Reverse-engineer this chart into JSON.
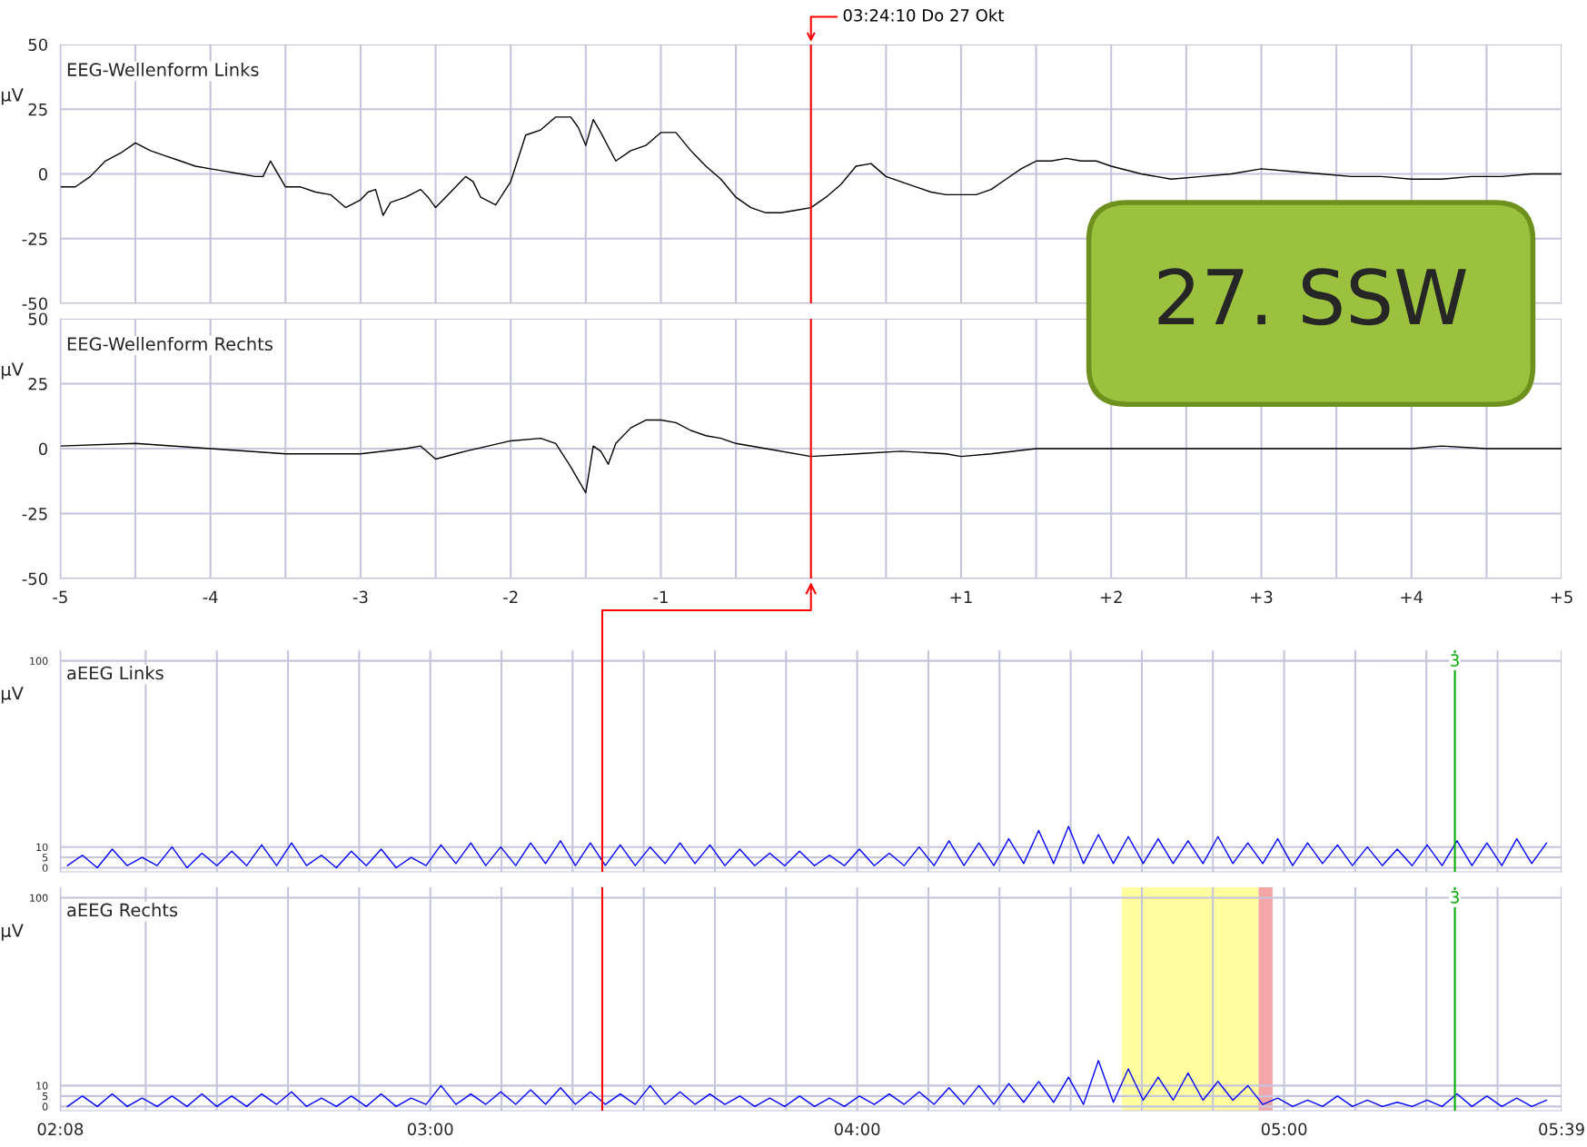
{
  "chart_data": [
    {
      "type": "line",
      "title": "EEG-Wellenform Links",
      "ylabel": "µV",
      "tick_labels": "y",
      "grid": true,
      "xlim": [
        -5,
        5
      ],
      "xticks": [
        -5,
        -4.5,
        -4,
        -3.5,
        -3,
        -2.5,
        -2,
        -1.5,
        -1,
        -0.5,
        0,
        0.5,
        1,
        1.5,
        2,
        2.5,
        3,
        3.5,
        4,
        4.5,
        5
      ],
      "ylim": [
        -50,
        50
      ],
      "yticks": [
        -50,
        -25,
        0,
        25,
        50
      ],
      "x": [
        -5,
        -4.9,
        -4.8,
        -4.7,
        -4.6,
        -4.5,
        -4.4,
        -4.3,
        -4.2,
        -4.1,
        -4,
        -3.9,
        -3.8,
        -3.7,
        -3.65,
        -3.6,
        -3.5,
        -3.4,
        -3.3,
        -3.2,
        -3.1,
        -3,
        -2.95,
        -2.9,
        -2.85,
        -2.8,
        -2.7,
        -2.6,
        -2.55,
        -2.5,
        -2.4,
        -2.3,
        -2.25,
        -2.2,
        -2.1,
        -2,
        -1.9,
        -1.8,
        -1.7,
        -1.6,
        -1.55,
        -1.5,
        -1.45,
        -1.4,
        -1.3,
        -1.2,
        -1.1,
        -1,
        -0.9,
        -0.8,
        -0.7,
        -0.6,
        -0.5,
        -0.4,
        -0.3,
        -0.2,
        -0.1,
        0,
        0.1,
        0.2,
        0.3,
        0.4,
        0.5,
        0.6,
        0.7,
        0.8,
        0.9,
        1,
        1.1,
        1.2,
        1.3,
        1.4,
        1.5,
        1.6,
        1.7,
        1.8,
        1.9,
        2,
        2.2,
        2.4,
        2.6,
        2.8,
        3,
        3.2,
        3.4,
        3.6,
        3.8,
        4,
        4.2,
        4.4,
        4.6,
        4.8,
        5
      ],
      "series": [
        {
          "color": "#000000",
          "values": [
            -5,
            -5,
            -1,
            5,
            8,
            12,
            9,
            7,
            5,
            3,
            2,
            1,
            0,
            -1,
            -1,
            5,
            -5,
            -5,
            -7,
            -8,
            -13,
            -10,
            -7,
            -6,
            -16,
            -11,
            -9,
            -6,
            -9,
            -13,
            -7,
            -1,
            -3,
            -9,
            -12,
            -3,
            15,
            17,
            22,
            22,
            18,
            11,
            21,
            16,
            5,
            9,
            11,
            16,
            16,
            9,
            3,
            -2,
            -9,
            -13,
            -15,
            -15,
            -14,
            -13,
            -9,
            -4,
            3,
            4,
            -1,
            -3,
            -5,
            -7,
            -8,
            -8,
            -8,
            -6,
            -2,
            2,
            5,
            5,
            6,
            5,
            5,
            3,
            0,
            -2,
            -1,
            0,
            2,
            1,
            0,
            -1,
            -1,
            -2,
            -2,
            -1,
            -1,
            0,
            0
          ]
        }
      ],
      "ref_lines": [
        {
          "axis": "x",
          "value": 0,
          "color": "#ff0000"
        }
      ],
      "annotations": [
        "03:24:10 Do 27 Okt",
        "27. SSW"
      ]
    },
    {
      "type": "line",
      "title": "EEG-Wellenform Rechts",
      "ylabel": "µV",
      "grid": true,
      "xlim": [
        -5,
        5
      ],
      "xticks": [
        -5,
        {
          "value": -4.5,
          "label": null
        },
        -4,
        {
          "value": -3.5,
          "label": null
        },
        -3,
        {
          "value": -2.5,
          "label": null
        },
        -2,
        {
          "value": -1.5,
          "label": null
        },
        -1,
        {
          "value": -0.5,
          "label": null
        },
        {
          "value": 0,
          "label": null
        },
        {
          "value": 0.5,
          "label": null
        },
        {
          "value": 1,
          "label": "+1"
        },
        {
          "value": 1.5,
          "label": null
        },
        {
          "value": 2,
          "label": "+2"
        },
        {
          "value": 2.5,
          "label": null
        },
        {
          "value": 3,
          "label": "+3"
        },
        {
          "value": 3.5,
          "label": null
        },
        {
          "value": 4,
          "label": "+4"
        },
        {
          "value": 4.5,
          "label": null
        },
        {
          "value": 5,
          "label": "+5"
        }
      ],
      "ylim": [
        -50,
        50
      ],
      "yticks": [
        -50,
        -25,
        0,
        25,
        50
      ],
      "x": [
        -5,
        -4.5,
        -4,
        -3.5,
        -3,
        -2.7,
        -2.6,
        -2.5,
        -2.3,
        -2,
        -1.8,
        -1.7,
        -1.6,
        -1.5,
        -1.45,
        -1.4,
        -1.35,
        -1.3,
        -1.2,
        -1.1,
        -1,
        -0.9,
        -0.8,
        -0.7,
        -0.6,
        -0.5,
        -0.3,
        0,
        0.3,
        0.6,
        0.9,
        1,
        1.2,
        1.5,
        2,
        2.5,
        3,
        3.5,
        4,
        4.2,
        4.5,
        5
      ],
      "series": [
        {
          "color": "#000000",
          "values": [
            1,
            2,
            0,
            -2,
            -2,
            0,
            1,
            -4,
            -1,
            3,
            4,
            2,
            -7,
            -17,
            1,
            -1,
            -6,
            2,
            8,
            11,
            11,
            10,
            7,
            5,
            4,
            2,
            0,
            -3,
            -2,
            -1,
            -2,
            -3,
            -2,
            0,
            0,
            0,
            0,
            0,
            0,
            1,
            0,
            0
          ]
        }
      ],
      "ref_lines": [
        {
          "axis": "x",
          "value": 0,
          "color": "#ff0000"
        }
      ]
    },
    {
      "type": "line",
      "title": "aEEG Links",
      "ylabel": "µV",
      "tick_labels": "y",
      "grid": true,
      "xlim": [
        2.1333,
        5.65
      ],
      "xticks": [
        2.1333,
        2.3333,
        2.5,
        2.6667,
        2.8333,
        3,
        3.1667,
        3.3333,
        3.5,
        3.6667,
        3.8333,
        4,
        4.1667,
        4.3333,
        4.5,
        4.6667,
        4.8333,
        5,
        5.1667,
        5.3333,
        5.5,
        5.65
      ],
      "ylim": [
        -2,
        105
      ],
      "yticks": [
        0,
        5,
        10,
        100
      ],
      "x": [
        2.15,
        2.185,
        2.22,
        2.255,
        2.29,
        2.325,
        2.36,
        2.395,
        2.43,
        2.465,
        2.5,
        2.535,
        2.57,
        2.605,
        2.64,
        2.675,
        2.71,
        2.745,
        2.78,
        2.815,
        2.85,
        2.885,
        2.92,
        2.955,
        2.99,
        3.025,
        3.06,
        3.095,
        3.13,
        3.165,
        3.2,
        3.235,
        3.27,
        3.305,
        3.34,
        3.375,
        3.41,
        3.445,
        3.48,
        3.515,
        3.55,
        3.585,
        3.62,
        3.655,
        3.69,
        3.725,
        3.76,
        3.795,
        3.83,
        3.865,
        3.9,
        3.935,
        3.97,
        4.005,
        4.04,
        4.075,
        4.11,
        4.145,
        4.18,
        4.215,
        4.25,
        4.285,
        4.32,
        4.355,
        4.39,
        4.425,
        4.46,
        4.495,
        4.53,
        4.565,
        4.6,
        4.635,
        4.67,
        4.705,
        4.74,
        4.775,
        4.81,
        4.845,
        4.88,
        4.915,
        4.95,
        4.985,
        5.02,
        5.055,
        5.09,
        5.125,
        5.16,
        5.195,
        5.23,
        5.265,
        5.3,
        5.335,
        5.37,
        5.405,
        5.44,
        5.475,
        5.51,
        5.545,
        5.58,
        5.615
      ],
      "series": [
        {
          "color": "#0000ff",
          "values": [
            1,
            6,
            0,
            9,
            1,
            5,
            1,
            10,
            0,
            7,
            1,
            8,
            1,
            11,
            1,
            12,
            1,
            6,
            0,
            8,
            1,
            9,
            0,
            5,
            1,
            11,
            2,
            12,
            1,
            10,
            1,
            12,
            2,
            13,
            1,
            12,
            1,
            11,
            1,
            10,
            2,
            12,
            2,
            11,
            1,
            9,
            1,
            7,
            1,
            8,
            1,
            6,
            1,
            9,
            1,
            7,
            1,
            10,
            1,
            13,
            1,
            12,
            1,
            14,
            2,
            18,
            2,
            20,
            2,
            16,
            2,
            15,
            2,
            14,
            2,
            13,
            2,
            15,
            2,
            12,
            2,
            14,
            1,
            12,
            2,
            11,
            1,
            10,
            1,
            9,
            1,
            11,
            1,
            13,
            1,
            12,
            1,
            14,
            2,
            12
          ]
        }
      ],
      "ref_lines": [
        {
          "axis": "x",
          "value": 3.4028,
          "color": "#ff0000"
        },
        {
          "axis": "x",
          "value": 5.4,
          "color": "#00aa00"
        }
      ],
      "annotations": [
        "3"
      ]
    },
    {
      "type": "line",
      "title": "aEEG Rechts",
      "ylabel": "µV",
      "grid": true,
      "xlim": [
        2.1333,
        5.65
      ],
      "xticks": [
        {
          "value": 2.1333,
          "label": "02:08"
        },
        {
          "value": 2.3333,
          "label": null
        },
        {
          "value": 2.5,
          "label": null
        },
        {
          "value": 2.6667,
          "label": null
        },
        {
          "value": 2.8333,
          "label": null
        },
        {
          "value": 3,
          "label": "03:00"
        },
        {
          "value": 3.1667,
          "label": null
        },
        {
          "value": 3.3333,
          "label": null
        },
        {
          "value": 3.5,
          "label": null
        },
        {
          "value": 3.6667,
          "label": null
        },
        {
          "value": 3.8333,
          "label": null
        },
        {
          "value": 4,
          "label": "04:00"
        },
        {
          "value": 4.1667,
          "label": null
        },
        {
          "value": 4.3333,
          "label": null
        },
        {
          "value": 4.5,
          "label": null
        },
        {
          "value": 4.6667,
          "label": null
        },
        {
          "value": 4.8333,
          "label": null
        },
        {
          "value": 5,
          "label": "05:00"
        },
        {
          "value": 5.1667,
          "label": null
        },
        {
          "value": 5.3333,
          "label": null
        },
        {
          "value": 5.5,
          "label": null
        },
        {
          "value": 5.65,
          "label": "05:39"
        }
      ],
      "ylim": [
        -2,
        105
      ],
      "yticks": [
        0,
        5,
        10,
        100
      ],
      "x": [
        2.15,
        2.185,
        2.22,
        2.255,
        2.29,
        2.325,
        2.36,
        2.395,
        2.43,
        2.465,
        2.5,
        2.535,
        2.57,
        2.605,
        2.64,
        2.675,
        2.71,
        2.745,
        2.78,
        2.815,
        2.85,
        2.885,
        2.92,
        2.955,
        2.99,
        3.025,
        3.06,
        3.095,
        3.13,
        3.165,
        3.2,
        3.235,
        3.27,
        3.305,
        3.34,
        3.375,
        3.41,
        3.445,
        3.48,
        3.515,
        3.55,
        3.585,
        3.62,
        3.655,
        3.69,
        3.725,
        3.76,
        3.795,
        3.83,
        3.865,
        3.9,
        3.935,
        3.97,
        4.005,
        4.04,
        4.075,
        4.11,
        4.145,
        4.18,
        4.215,
        4.25,
        4.285,
        4.32,
        4.355,
        4.39,
        4.425,
        4.46,
        4.495,
        4.53,
        4.565,
        4.6,
        4.635,
        4.67,
        4.705,
        4.74,
        4.775,
        4.81,
        4.845,
        4.88,
        4.915,
        4.95,
        4.985,
        5.02,
        5.055,
        5.09,
        5.125,
        5.16,
        5.195,
        5.23,
        5.265,
        5.3,
        5.335,
        5.37,
        5.405,
        5.44,
        5.475,
        5.51,
        5.545,
        5.58,
        5.615
      ],
      "series": [
        {
          "color": "#0000ff",
          "values": [
            0,
            5,
            0,
            6,
            0,
            4,
            0,
            5,
            0,
            6,
            0,
            5,
            0,
            6,
            1,
            7,
            0,
            4,
            0,
            5,
            0,
            6,
            0,
            4,
            1,
            10,
            1,
            6,
            1,
            7,
            1,
            8,
            1,
            9,
            1,
            7,
            1,
            6,
            1,
            10,
            1,
            7,
            1,
            6,
            1,
            5,
            0,
            4,
            0,
            5,
            0,
            4,
            0,
            5,
            1,
            6,
            1,
            7,
            1,
            9,
            1,
            10,
            1,
            11,
            2,
            12,
            2,
            14,
            1,
            22,
            2,
            18,
            3,
            14,
            3,
            16,
            3,
            12,
            3,
            10,
            1,
            4,
            0,
            3,
            0,
            5,
            0,
            3,
            0,
            2,
            0,
            3,
            0,
            6,
            0,
            5,
            0,
            4,
            0,
            3
          ]
        }
      ],
      "bands": [
        {
          "axis": "x",
          "from": 4.62,
          "to": 4.94,
          "color": "#ffffa0"
        },
        {
          "axis": "x",
          "from": 4.94,
          "to": 4.973,
          "color": "#f4a6a6"
        }
      ],
      "ref_lines": [
        {
          "axis": "x",
          "value": 3.4028,
          "color": "#ff0000"
        },
        {
          "axis": "x",
          "value": 5.4,
          "color": "#00aa00"
        }
      ],
      "annotations": [
        "3"
      ]
    }
  ]
}
